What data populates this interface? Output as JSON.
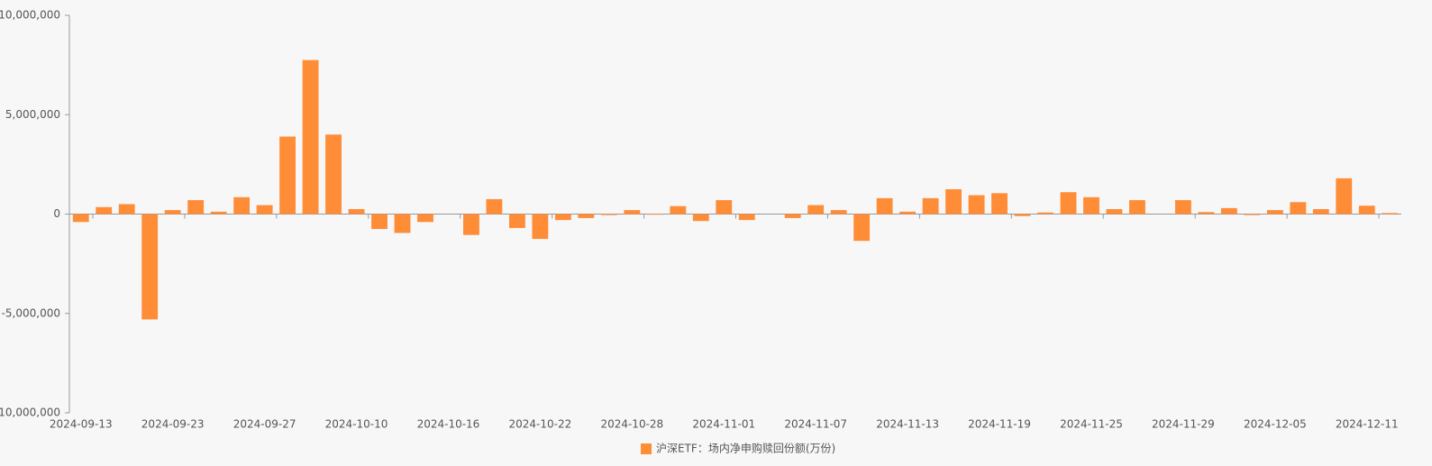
{
  "chart_data": {
    "type": "bar",
    "categories": [
      "2024-09-13",
      null,
      null,
      null,
      "2024-09-23",
      null,
      null,
      null,
      "2024-09-27",
      null,
      null,
      null,
      "2024-10-10",
      null,
      null,
      null,
      "2024-10-16",
      null,
      null,
      null,
      "2024-10-22",
      null,
      null,
      null,
      "2024-10-28",
      null,
      null,
      null,
      "2024-11-01",
      null,
      null,
      null,
      "2024-11-07",
      null,
      null,
      null,
      "2024-11-13",
      null,
      null,
      null,
      "2024-11-19",
      null,
      null,
      null,
      "2024-11-25",
      null,
      null,
      null,
      "2024-11-29",
      null,
      null,
      null,
      "2024-12-05",
      null,
      null,
      null,
      "2024-12-11",
      null
    ],
    "series": [
      {
        "name": "沪深ETF：场内净申购赎回份额(万份)",
        "color": "#ff8c37",
        "values": [
          -400000,
          350000,
          500000,
          -5300000,
          200000,
          700000,
          120000,
          850000,
          450000,
          3900000,
          7750000,
          4000000,
          250000,
          -750000,
          -950000,
          -400000,
          0,
          -1050000,
          750000,
          -700000,
          -1250000,
          -300000,
          -200000,
          -50000,
          200000,
          -30000,
          400000,
          -350000,
          700000,
          -300000,
          0,
          -200000,
          450000,
          200000,
          -1350000,
          800000,
          120000,
          800000,
          1250000,
          950000,
          1050000,
          -100000,
          80000,
          1100000,
          850000,
          250000,
          700000,
          0,
          700000,
          100000,
          300000,
          -50000,
          200000,
          600000,
          250000,
          1800000,
          420000,
          50000
        ]
      }
    ],
    "ylim": [
      -10000000,
      10000000
    ],
    "yticks": [
      {
        "value": -10000000,
        "label": "-10,000,000"
      },
      {
        "value": -5000000,
        "label": "-5,000,000"
      },
      {
        "value": 0,
        "label": "0"
      },
      {
        "value": 5000000,
        "label": "5,000,000"
      },
      {
        "value": 10000000,
        "label": "10,000,000"
      }
    ],
    "legend": "bottom"
  }
}
